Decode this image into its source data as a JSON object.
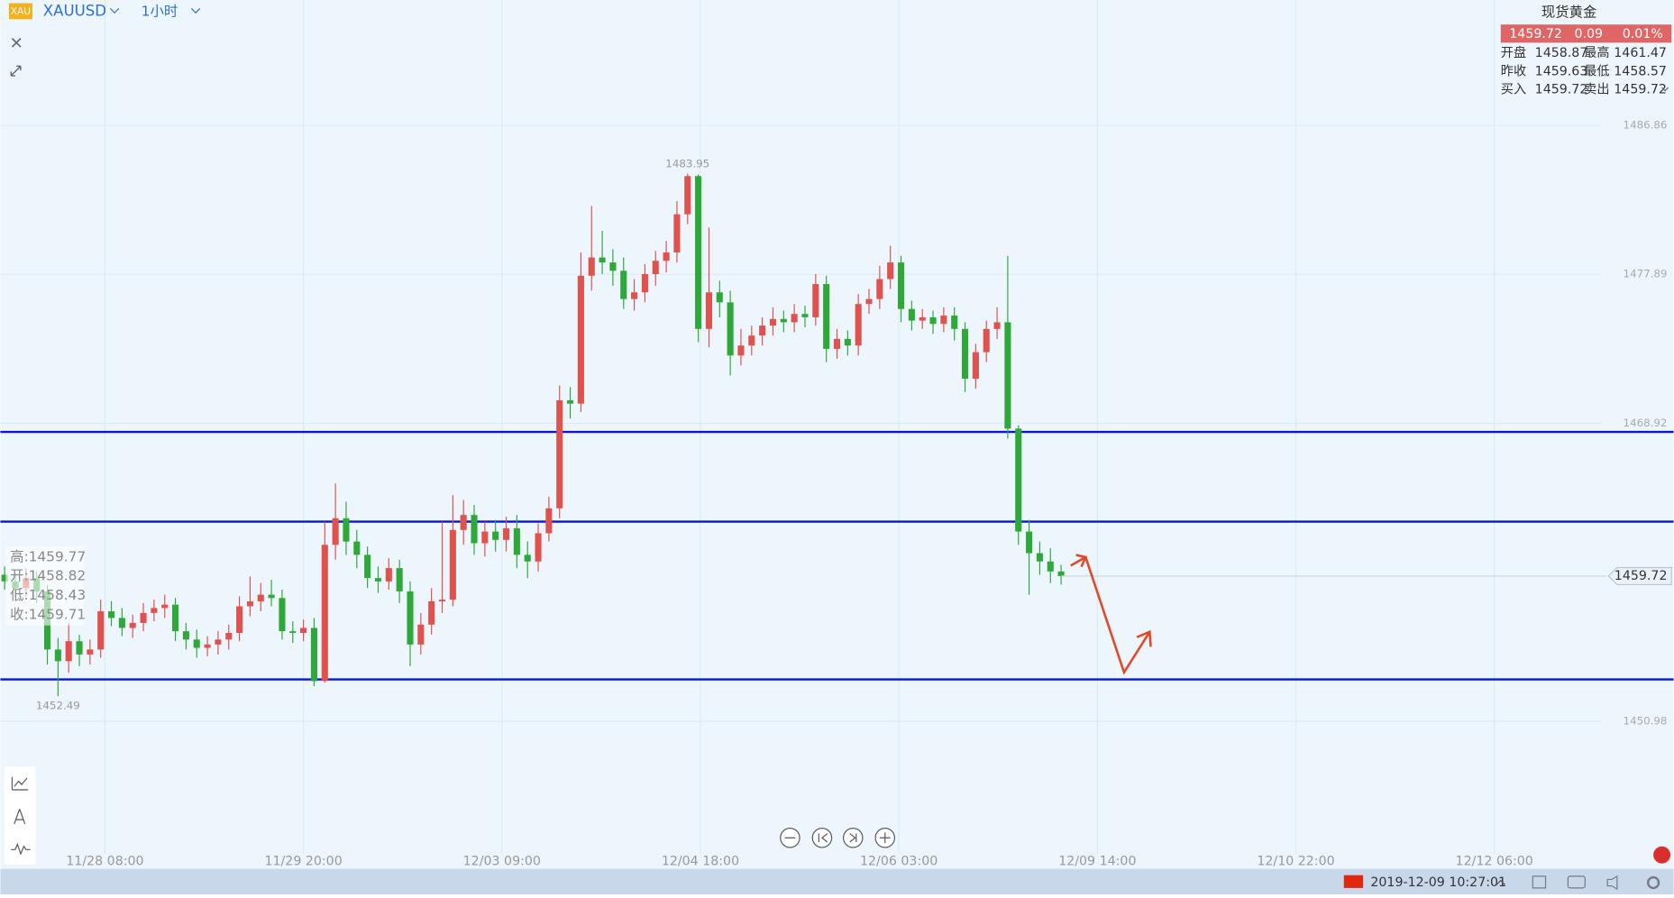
{
  "chart_data": {
    "type": "candlestick",
    "symbol": "XAUUSD",
    "interval": "1小时",
    "open": [
      1459.8,
      1459.4,
      1459.0,
      1459.6,
      1458.8,
      1455.3,
      1454.6,
      1455.8,
      1455.0,
      1455.3,
      1457.6,
      1457.2,
      1456.6,
      1456.9,
      1457.5,
      1457.8,
      1458.0,
      1456.4,
      1455.9,
      1455.4,
      1455.6,
      1455.9,
      1456.3,
      1457.9,
      1458.2,
      1458.6,
      1458.4,
      1456.4,
      1456.3,
      1456.6,
      1453.4,
      1461.6,
      1463.2,
      1461.8,
      1461.0,
      1459.6,
      1459.4,
      1460.2,
      1458.8,
      1455.6,
      1456.8,
      1458.2,
      1458.3,
      1462.5,
      1463.4,
      1461.7,
      1462.4,
      1461.9,
      1462.6,
      1461.0,
      1460.6,
      1462.3,
      1463.8,
      1470.3,
      1470.1,
      1477.8,
      1478.9,
      1478.6,
      1478.1,
      1476.4,
      1476.8,
      1477.9,
      1478.7,
      1479.2,
      1481.5,
      1483.8,
      1474.6,
      1476.8,
      1476.2,
      1473.0,
      1473.6,
      1474.2,
      1474.8,
      1475.2,
      1475.0,
      1475.5,
      1475.3,
      1477.3,
      1473.4,
      1474.0,
      1473.6,
      1476.1,
      1476.4,
      1477.6,
      1478.6,
      1475.8,
      1475.1,
      1475.3,
      1474.9,
      1475.4,
      1474.6,
      1471.6,
      1473.2,
      1474.6,
      1475.0,
      1468.6,
      1462.4,
      1461.1,
      1460.6,
      1460.0
    ],
    "high": [
      1460.3,
      1459.9,
      1460.2,
      1460.0,
      1459.2,
      1456.0,
      1456.9,
      1456.2,
      1455.9,
      1458.3,
      1458.2,
      1457.8,
      1457.4,
      1458.1,
      1458.3,
      1458.6,
      1458.4,
      1456.9,
      1456.5,
      1456.1,
      1456.4,
      1456.8,
      1458.5,
      1459.7,
      1459.3,
      1459.5,
      1458.9,
      1457.0,
      1457.1,
      1457.2,
      1463.0,
      1465.3,
      1464.2,
      1462.5,
      1461.5,
      1460.3,
      1460.8,
      1460.7,
      1459.4,
      1457.5,
      1459.0,
      1463.0,
      1464.6,
      1464.3,
      1464.0,
      1463.0,
      1463.1,
      1463.3,
      1463.4,
      1461.8,
      1462.9,
      1464.5,
      1471.2,
      1471.1,
      1479.2,
      1482.0,
      1480.5,
      1479.4,
      1478.9,
      1477.6,
      1478.5,
      1479.3,
      1479.9,
      1482.3,
      1483.95,
      1483.9,
      1480.7,
      1477.5,
      1476.9,
      1474.6,
      1474.8,
      1475.3,
      1475.9,
      1475.7,
      1476.1,
      1476.0,
      1477.9,
      1477.8,
      1474.6,
      1474.5,
      1476.7,
      1477.0,
      1478.4,
      1479.6,
      1479.0,
      1476.3,
      1475.8,
      1475.7,
      1475.9,
      1475.9,
      1475.0,
      1473.7,
      1475.1,
      1475.9,
      1479.0,
      1468.8,
      1463.1,
      1461.8,
      1461.4,
      1460.4
    ],
    "low": [
      1458.9,
      1458.4,
      1458.5,
      1458.1,
      1454.4,
      1452.49,
      1453.9,
      1454.3,
      1454.4,
      1454.8,
      1456.7,
      1456.1,
      1456.0,
      1456.4,
      1457.0,
      1457.2,
      1455.8,
      1455.3,
      1454.8,
      1454.9,
      1455.0,
      1455.3,
      1455.8,
      1457.3,
      1457.6,
      1457.9,
      1455.9,
      1455.7,
      1455.8,
      1453.1,
      1453.3,
      1460.7,
      1461.0,
      1460.2,
      1459.0,
      1458.7,
      1458.9,
      1458.1,
      1454.3,
      1455.0,
      1456.2,
      1457.5,
      1457.9,
      1461.6,
      1461.0,
      1460.9,
      1461.2,
      1461.2,
      1460.2,
      1459.6,
      1460.0,
      1461.8,
      1463.2,
      1469.2,
      1469.6,
      1476.9,
      1477.9,
      1477.2,
      1475.8,
      1475.7,
      1476.2,
      1477.2,
      1478.0,
      1478.6,
      1480.9,
      1473.8,
      1473.5,
      1475.3,
      1471.8,
      1472.4,
      1473.0,
      1473.6,
      1474.2,
      1474.4,
      1474.4,
      1474.7,
      1474.8,
      1472.6,
      1472.8,
      1473.0,
      1473.0,
      1475.5,
      1475.8,
      1477.0,
      1475.0,
      1474.5,
      1474.6,
      1474.3,
      1474.4,
      1473.9,
      1470.8,
      1471.0,
      1472.6,
      1474.0,
      1468.0,
      1461.6,
      1458.6,
      1459.8,
      1459.3,
      1459.2
    ],
    "close": [
      1459.4,
      1459.0,
      1459.6,
      1458.8,
      1455.3,
      1454.6,
      1455.8,
      1455.0,
      1455.3,
      1457.6,
      1457.2,
      1456.6,
      1456.9,
      1457.5,
      1457.8,
      1458.0,
      1456.4,
      1455.9,
      1455.4,
      1455.6,
      1455.9,
      1456.3,
      1457.9,
      1458.2,
      1458.6,
      1458.4,
      1456.4,
      1456.3,
      1456.6,
      1453.4,
      1461.6,
      1463.2,
      1461.8,
      1461.0,
      1459.6,
      1459.4,
      1460.2,
      1458.8,
      1455.6,
      1456.8,
      1458.2,
      1458.3,
      1462.5,
      1463.4,
      1461.7,
      1462.4,
      1461.9,
      1462.6,
      1461.0,
      1460.6,
      1462.3,
      1463.8,
      1470.3,
      1470.1,
      1477.8,
      1478.9,
      1478.6,
      1478.1,
      1476.4,
      1476.8,
      1477.9,
      1478.7,
      1479.2,
      1481.5,
      1483.8,
      1474.6,
      1476.8,
      1476.2,
      1473.0,
      1473.6,
      1474.2,
      1474.8,
      1475.2,
      1475.0,
      1475.5,
      1475.3,
      1477.3,
      1473.4,
      1474.0,
      1473.6,
      1476.1,
      1476.4,
      1477.6,
      1478.6,
      1475.8,
      1475.1,
      1475.3,
      1474.9,
      1475.4,
      1474.6,
      1471.6,
      1473.2,
      1474.6,
      1475.0,
      1468.6,
      1462.4,
      1461.1,
      1460.6,
      1460.0,
      1459.72
    ],
    "up_color": "#e0524d",
    "down_color": "#2fa83a",
    "xlim": [
      -0.4,
      149.6
    ],
    "xticks": [
      {
        "value": 9.4,
        "label": "11/28 08:00"
      },
      {
        "value": 28,
        "label": "11/29 20:00"
      },
      {
        "value": 46.6,
        "label": "12/03 09:00"
      },
      {
        "value": 65.2,
        "label": "12/04 18:00"
      },
      {
        "value": 83.8,
        "label": "12/06 03:00"
      },
      {
        "value": 102.4,
        "label": "12/09 14:00"
      },
      {
        "value": 121,
        "label": "12/10 22:00"
      },
      {
        "value": 139.6,
        "label": "12/12 06:00"
      }
    ],
    "ylim": [
      1443.0,
      1494.4
    ],
    "yticks": [
      1450.98,
      1468.92,
      1477.89,
      1486.86
    ],
    "grid": true,
    "hlines": [
      1468.4,
      1463.0,
      1453.5
    ],
    "hline_color": "#0a14d8"
  },
  "quote": {
    "title": "现货黄金",
    "price": "1459.72",
    "change": "0.09",
    "change_pct": "0.01%",
    "rows": [
      [
        "开盘",
        "1458.87",
        "最高",
        "1461.47"
      ],
      [
        "昨收",
        "1459.63",
        "最低",
        "1458.57"
      ],
      [
        "买入",
        "1459.72",
        "卖出",
        "1459.72"
      ]
    ]
  },
  "cursor_ohlc": [
    "高:1459.77",
    "开:1458.82",
    "低:1458.43",
    "收:1459.71"
  ],
  "status": {
    "datetime": "2019-12-09 10:27:01"
  }
}
